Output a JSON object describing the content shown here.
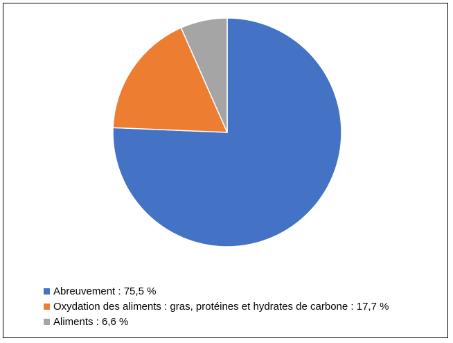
{
  "chart_data": {
    "type": "pie",
    "title": "",
    "slices": [
      {
        "label": "Abreuvement : 75,5 %",
        "value": 75.5,
        "color": "#4472C4"
      },
      {
        "label": "Oxydation des aliments : gras, protéines et hydrates de carbone : 17,7 %",
        "value": 17.7,
        "color": "#ED7D31"
      },
      {
        "label": "Aliments : 6,6 %",
        "value": 6.6,
        "color": "#A5A5A5"
      }
    ],
    "start_angle": "12 o'clock",
    "direction": "clockwise",
    "legend_position": "bottom-left"
  }
}
